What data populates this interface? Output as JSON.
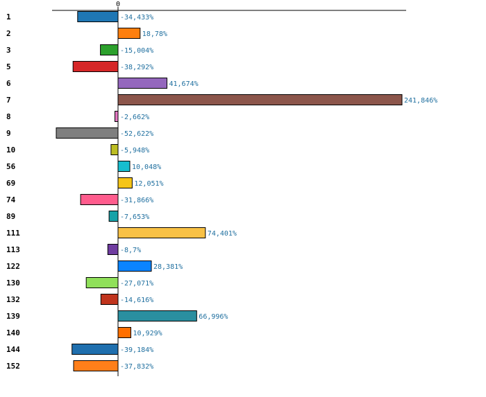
{
  "chart_data": {
    "type": "bar",
    "orientation": "horizontal",
    "title": "",
    "xlabel": "",
    "ylabel": "",
    "xlim": [
      -67,
      248
    ],
    "x_ticks": [
      "0"
    ],
    "grid": false,
    "legend": "none",
    "categories": [
      "1",
      "2",
      "3",
      "5",
      "6",
      "7",
      "8",
      "9",
      "10",
      "56",
      "69",
      "74",
      "89",
      "111",
      "113",
      "122",
      "130",
      "132",
      "139",
      "140",
      "144",
      "152"
    ],
    "values": [
      -34.433,
      18.78,
      -15.004,
      -38.292,
      41.674,
      241.846,
      -2.662,
      -52.622,
      -5.948,
      10.048,
      12.051,
      -31.866,
      -7.653,
      74.401,
      -8.7,
      28.381,
      -27.071,
      -14.616,
      66.996,
      10.929,
      -39.184,
      -37.832
    ],
    "value_labels": [
      "-34,433%",
      "18,78%",
      "-15,004%",
      "-38,292%",
      "41,674%",
      "241,846%",
      "-2,662%",
      "-52,622%",
      "-5,948%",
      "10,048%",
      "12,051%",
      "-31,866%",
      "-7,653%",
      "74,401%",
      "-8,7%",
      "28,381%",
      "-27,071%",
      "-14,616%",
      "66,996%",
      "10,929%",
      "-39,184%",
      "-37,832%"
    ],
    "colors": [
      "#1f77b4",
      "#ff7f0e",
      "#2ca02c",
      "#d62728",
      "#9467bd",
      "#8c564b",
      "#e377c2",
      "#7f7f7f",
      "#bcbd22",
      "#17becf",
      "#f5c518",
      "#ff5c8d",
      "#17a2a8",
      "#f8c146",
      "#6f3ca0",
      "#0a84ff",
      "#90e05a",
      "#c0341d",
      "#2a8fa0",
      "#ff6f00",
      "#1f6fae",
      "#ff7f1a"
    ]
  }
}
